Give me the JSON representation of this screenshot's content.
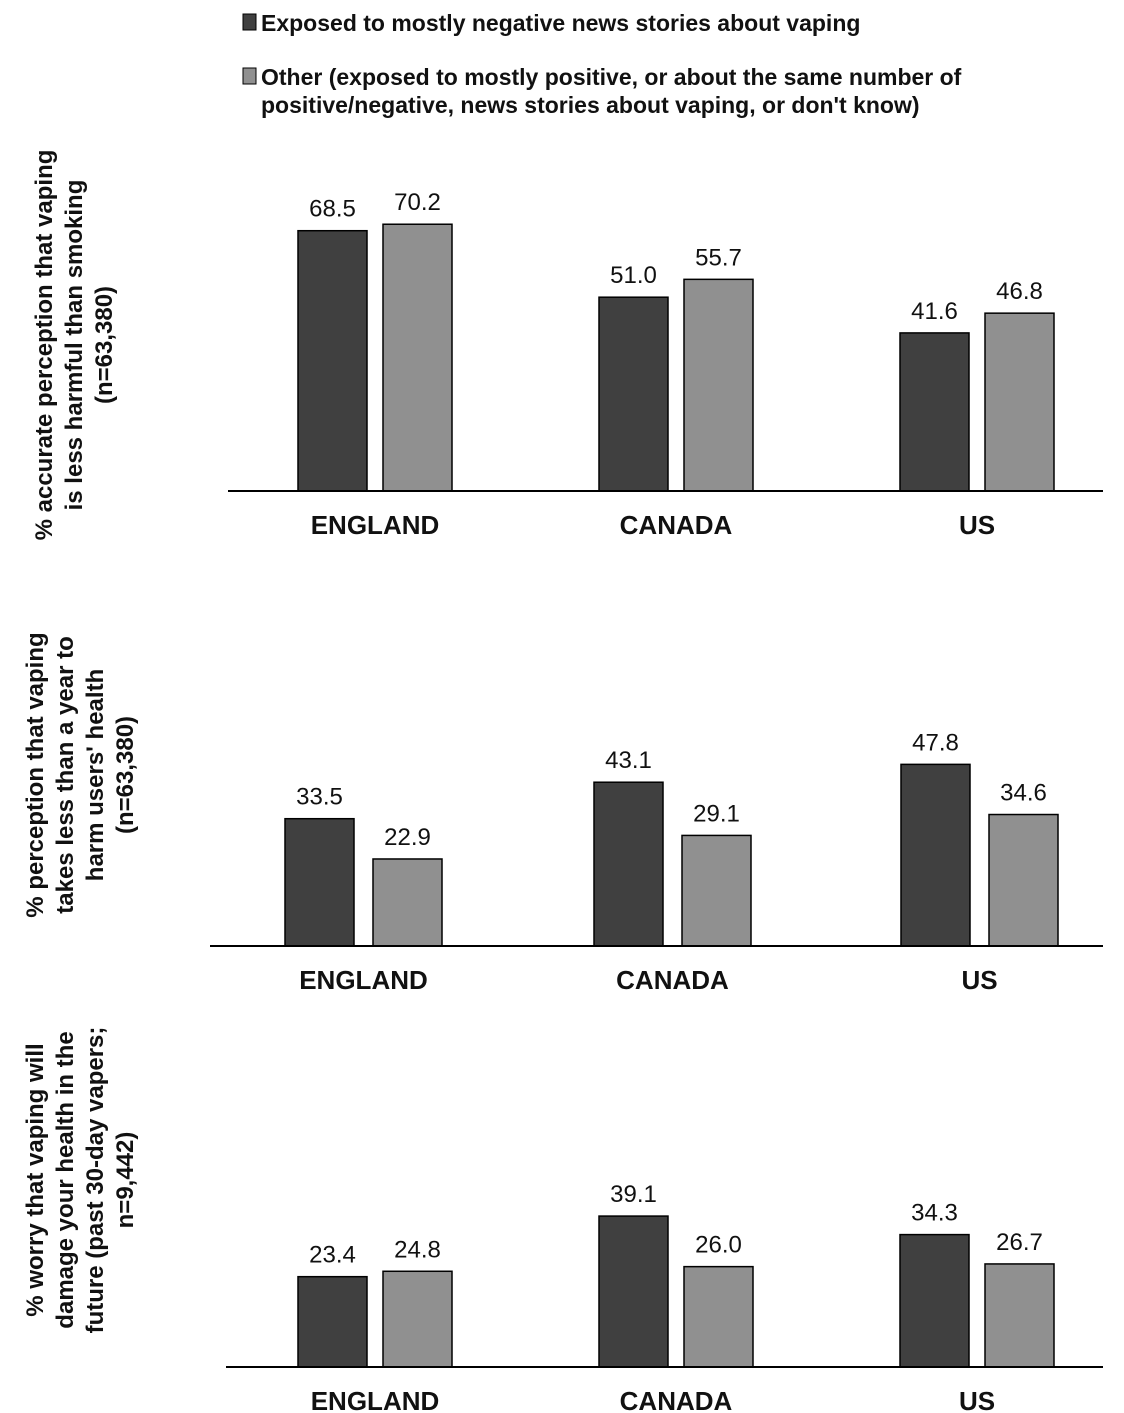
{
  "legend": [
    {
      "lines": [
        "Exposed to mostly negative news stories about vaping"
      ],
      "color": "#404040"
    },
    {
      "lines": [
        "Other (exposed to mostly positive, or about the same number of",
        "positive/negative, news stories about vaping, or don't know)"
      ],
      "color": "#909090"
    }
  ],
  "chart_data": [
    {
      "type": "bar",
      "categories": [
        "ENGLAND",
        "CANADA",
        "US"
      ],
      "ylabel_lines": [
        "% accurate perception that vaping",
        "is less harmful than smoking",
        "(n=63,380)"
      ],
      "series": [
        {
          "name": "Exposed to mostly negative news stories about vaping",
          "values": [
            68.5,
            51.0,
            41.6
          ],
          "labels": [
            "68.5",
            "51.0",
            "41.6"
          ],
          "color": "#404040"
        },
        {
          "name": "Other (exposed to mostly positive, or about the same number of positive/negative, news stories about vaping, or don't know)",
          "values": [
            70.2,
            55.7,
            46.8
          ],
          "labels": [
            "70.2",
            "55.7",
            "46.8"
          ],
          "color": "#909090"
        }
      ],
      "ylim": [
        0,
        80
      ],
      "grid": false
    },
    {
      "type": "bar",
      "categories": [
        "ENGLAND",
        "CANADA",
        "US"
      ],
      "ylabel_lines": [
        "% perception that vaping",
        "takes less than a year to",
        "harm users' health",
        "(n=63,380)"
      ],
      "series": [
        {
          "name": "Exposed to mostly negative news stories about vaping",
          "values": [
            33.5,
            43.1,
            47.8
          ],
          "labels": [
            "33.5",
            "43.1",
            "47.8"
          ],
          "color": "#404040"
        },
        {
          "name": "Other (exposed to mostly positive, or about the same number of positive/negative, news stories about vaping, or don't know)",
          "values": [
            22.9,
            29.1,
            34.6
          ],
          "labels": [
            "22.9",
            "29.1",
            "34.6"
          ],
          "color": "#909090"
        }
      ],
      "ylim": [
        0,
        80
      ],
      "grid": false
    },
    {
      "type": "bar",
      "categories": [
        "ENGLAND",
        "CANADA",
        "US"
      ],
      "ylabel_lines": [
        "% worry that vaping will",
        "damage your health in the",
        "future (past 30-day vapers;",
        "n=9,442)"
      ],
      "series": [
        {
          "name": "Exposed to mostly negative news stories about vaping",
          "values": [
            23.4,
            39.1,
            34.3
          ],
          "labels": [
            "23.4",
            "39.1",
            "34.3"
          ],
          "color": "#404040"
        },
        {
          "name": "Other (exposed to mostly positive, or about the same number of positive/negative, news stories about vaping, or don't know)",
          "values": [
            24.8,
            26.0,
            26.7
          ],
          "labels": [
            "24.8",
            "26.0",
            "26.7"
          ],
          "color": "#909090"
        }
      ],
      "ylim": [
        0,
        60
      ],
      "grid": false
    }
  ]
}
